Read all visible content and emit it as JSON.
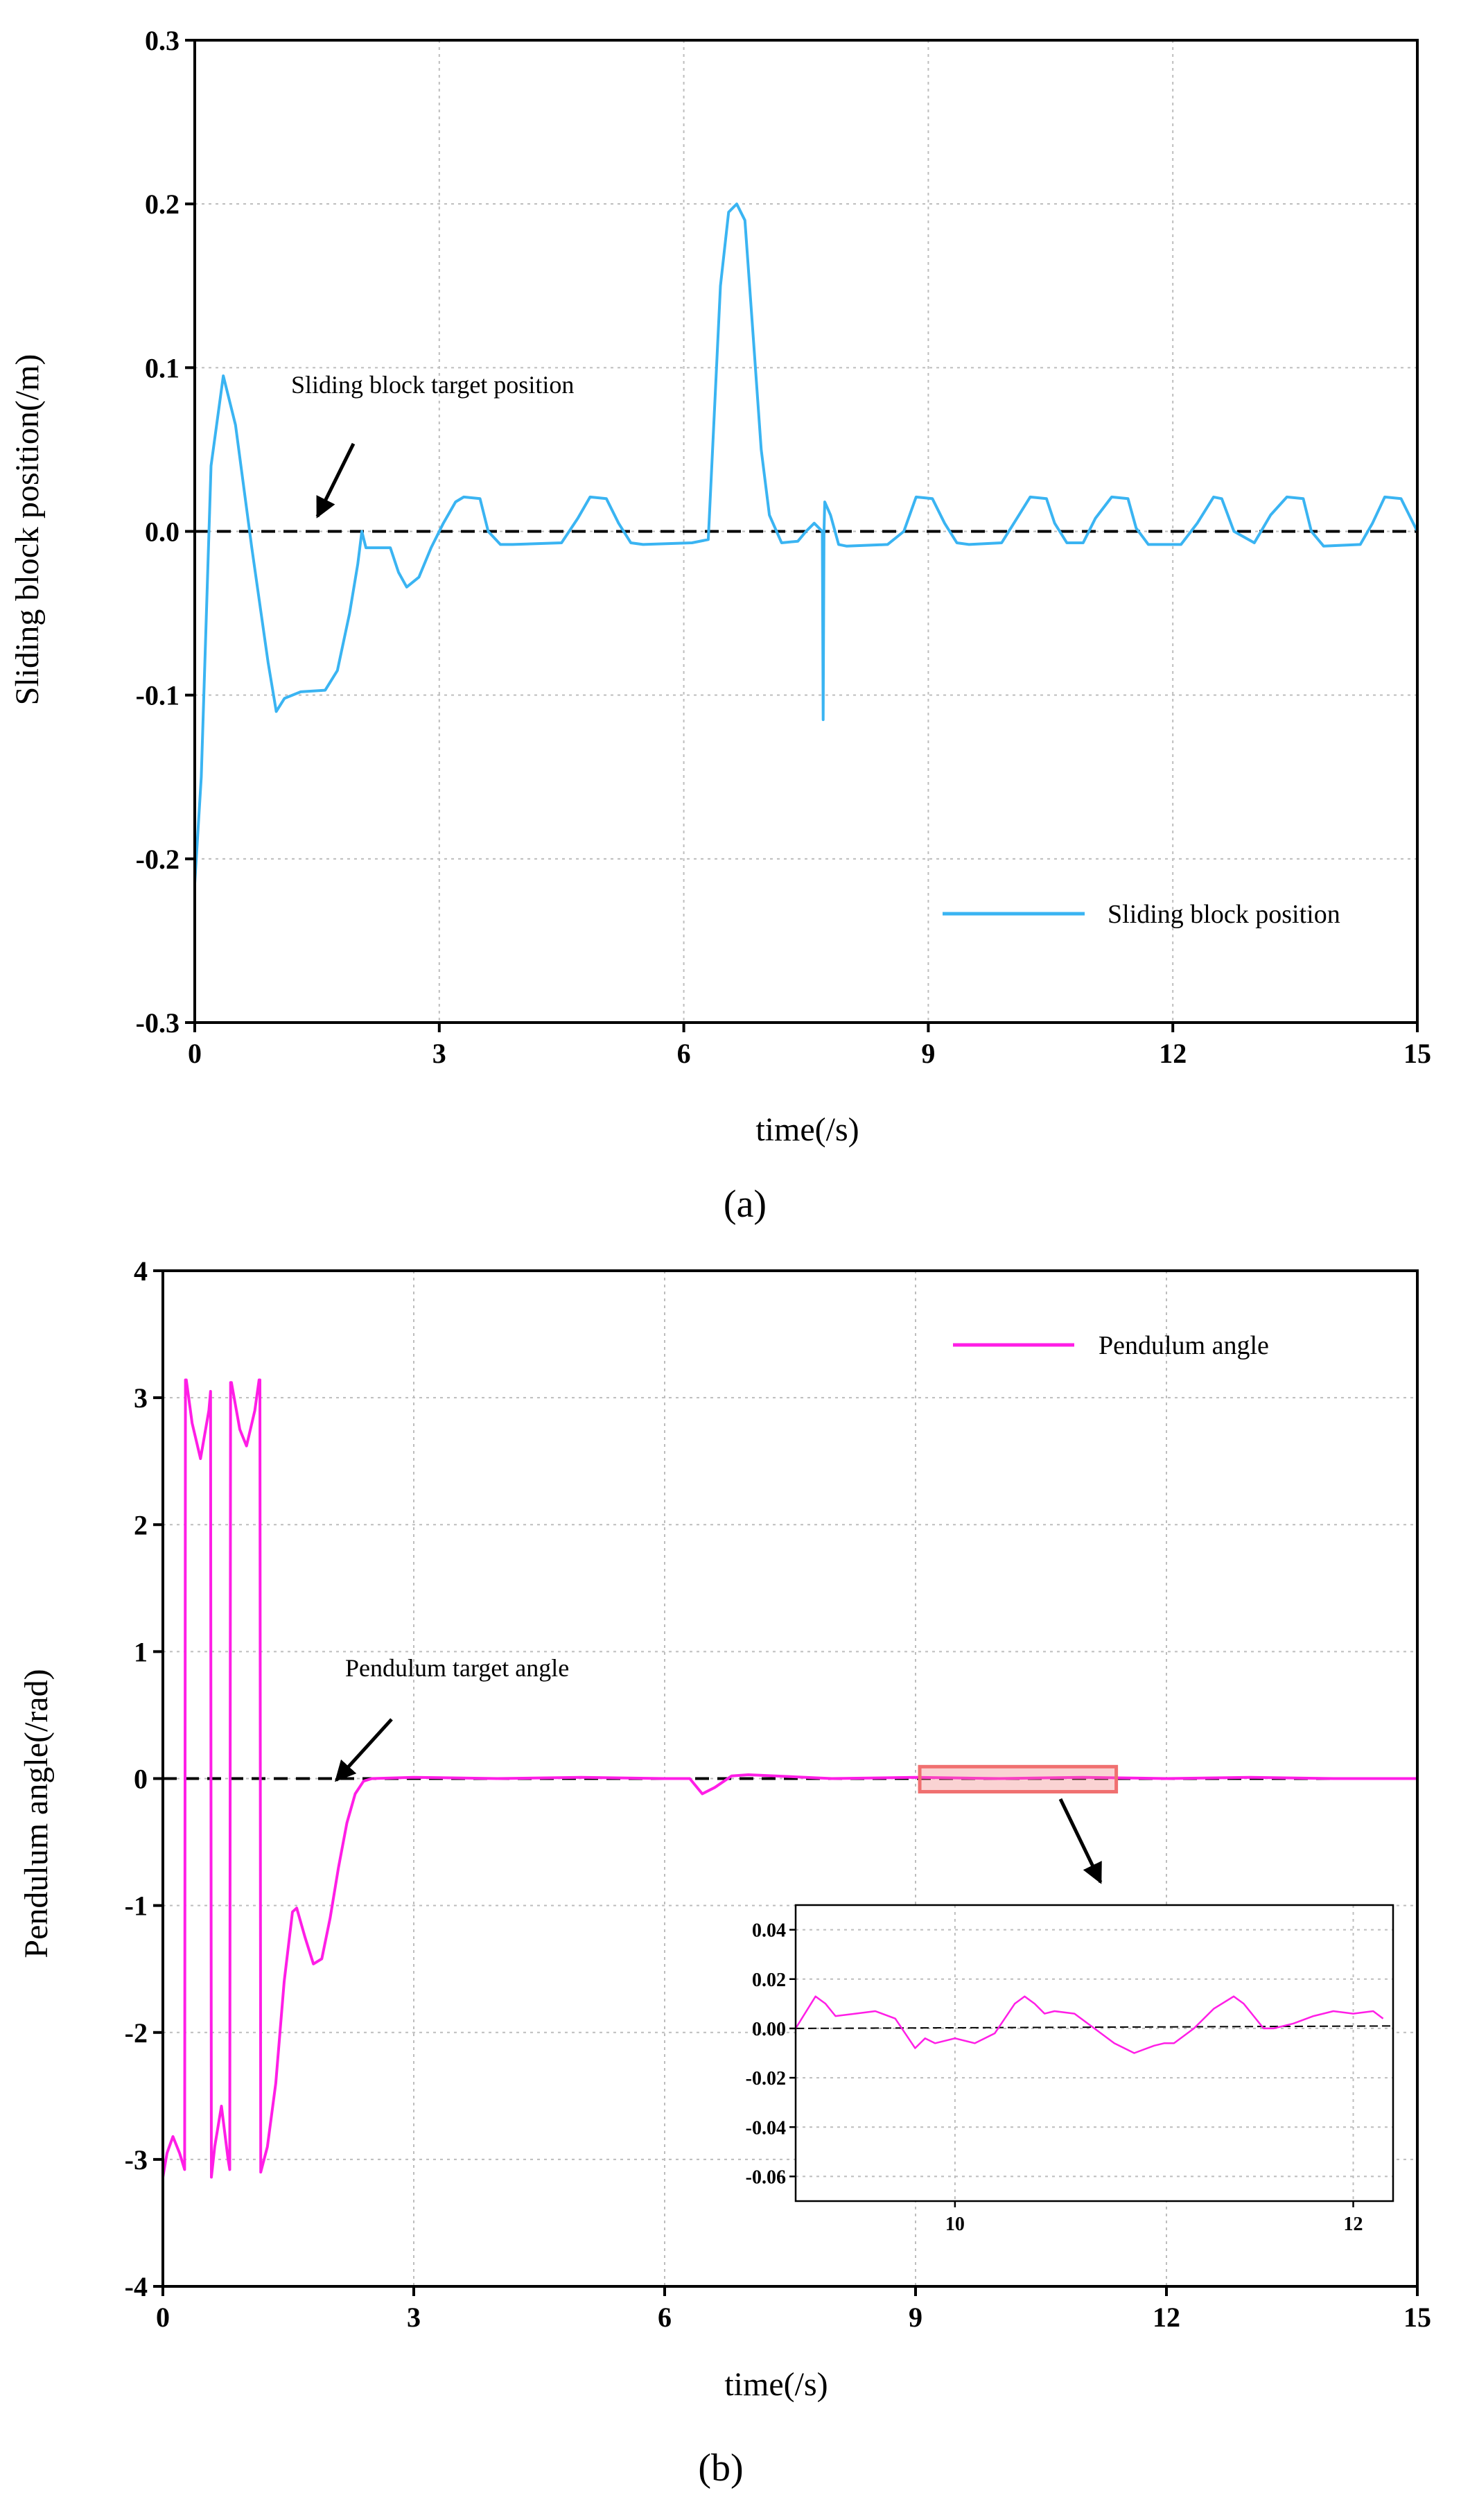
{
  "chart_data": [
    {
      "id": "a",
      "type": "line",
      "panel_label": "(a)",
      "xlabel": "time(/s)",
      "ylabel": "Sliding block position(/m)",
      "xlim": [
        0,
        15
      ],
      "ylim": [
        -0.3,
        0.3
      ],
      "xticks": [
        0,
        3,
        6,
        9,
        12,
        15
      ],
      "yticks": [
        -0.3,
        -0.2,
        -0.1,
        0.0,
        0.1,
        0.2,
        0.3
      ],
      "ytick_labels": [
        "-0.3",
        "-0.2",
        "-0.1",
        "0.0",
        "0.1",
        "0.2",
        "0.3"
      ],
      "grid": true,
      "legend_position": "bottom-right",
      "series": [
        {
          "name": "Sliding block position",
          "color": "#3ab4f2",
          "x": [
            0,
            0.08,
            0.2,
            0.35,
            0.5,
            0.7,
            0.9,
            1.0,
            1.1,
            1.3,
            1.6,
            1.75,
            1.9,
            2.0,
            2.05,
            2.1,
            2.4,
            2.5,
            2.6,
            2.75,
            2.9,
            3.05,
            3.2,
            3.3,
            3.5,
            3.6,
            3.75,
            3.9,
            4.5,
            4.7,
            4.85,
            5.05,
            5.2,
            5.35,
            5.5,
            6.1,
            6.3,
            6.45,
            6.55,
            6.65,
            6.75,
            6.85,
            6.95,
            7.05,
            7.2,
            7.4,
            7.5,
            7.6,
            7.7,
            7.71,
            7.72,
            7.73,
            7.8,
            7.9,
            8.0,
            8.5,
            8.7,
            8.85,
            9.05,
            9.2,
            9.35,
            9.5,
            9.9,
            10.05,
            10.25,
            10.45,
            10.55,
            10.7,
            10.9,
            11.05,
            11.25,
            11.45,
            11.55,
            11.7,
            12.0,
            12.1,
            12.3,
            12.5,
            12.6,
            12.75,
            13.0,
            13.2,
            13.4,
            13.6,
            13.7,
            13.85,
            14.3,
            14.45,
            14.6,
            14.8,
            14.9,
            15.0
          ],
          "y": [
            -0.215,
            -0.15,
            0.04,
            0.095,
            0.065,
            -0.01,
            -0.08,
            -0.11,
            -0.102,
            -0.098,
            -0.097,
            -0.085,
            -0.05,
            -0.02,
            0.0,
            -0.01,
            -0.01,
            -0.025,
            -0.034,
            -0.028,
            -0.01,
            0.005,
            0.018,
            0.021,
            0.02,
            0.0,
            -0.008,
            -0.008,
            -0.007,
            0.008,
            0.021,
            0.02,
            0.005,
            -0.007,
            -0.008,
            -0.007,
            -0.005,
            0.15,
            0.195,
            0.2,
            0.19,
            0.12,
            0.05,
            0.01,
            -0.007,
            -0.006,
            0.0,
            0.005,
            0.0,
            -0.115,
            0.0,
            0.018,
            0.01,
            -0.008,
            -0.009,
            -0.008,
            0.0,
            0.021,
            0.02,
            0.005,
            -0.007,
            -0.008,
            -0.007,
            0.005,
            0.021,
            0.02,
            0.005,
            -0.007,
            -0.007,
            0.008,
            0.021,
            0.02,
            0.002,
            -0.008,
            -0.008,
            -0.008,
            0.005,
            0.021,
            0.02,
            0.0,
            -0.007,
            0.01,
            0.021,
            0.02,
            0.0,
            -0.009,
            -0.008,
            0.005,
            0.021,
            0.02,
            0.01,
            0.0
          ]
        },
        {
          "name": "Sliding block target position",
          "color": "#000000",
          "dashed": true,
          "x": [
            0,
            15
          ],
          "y": [
            0,
            0
          ]
        }
      ],
      "annotations": [
        {
          "text": "Sliding block target position",
          "at": [
            1.55,
            0.0
          ]
        }
      ]
    },
    {
      "id": "b",
      "type": "line",
      "panel_label": "(b)",
      "xlabel": "time(/s)",
      "ylabel": "Pendulum angle(/rad)",
      "xlim": [
        0,
        15
      ],
      "ylim": [
        -4,
        4
      ],
      "xticks": [
        0,
        3,
        6,
        9,
        12,
        15
      ],
      "yticks": [
        -4,
        -3,
        -2,
        -1,
        0,
        1,
        2,
        3,
        4
      ],
      "ytick_labels": [
        "-4",
        "-3",
        "-2",
        "-1",
        "0",
        "1",
        "2",
        "3",
        "4"
      ],
      "grid": true,
      "legend_position": "top-right",
      "series": [
        {
          "name": "Pendulum angle",
          "color": "#ff1ee6",
          "x": [
            0,
            0.05,
            0.12,
            0.2,
            0.26,
            0.27,
            0.28,
            0.35,
            0.45,
            0.55,
            0.57,
            0.58,
            0.62,
            0.7,
            0.78,
            0.8,
            0.81,
            0.82,
            0.92,
            1.0,
            1.1,
            1.15,
            1.16,
            1.17,
            1.25,
            1.35,
            1.45,
            1.55,
            1.6,
            1.7,
            1.8,
            1.9,
            2.0,
            2.1,
            2.2,
            2.3,
            2.4,
            2.5,
            3.0,
            4.0,
            5.0,
            6.0,
            6.3,
            6.45,
            6.6,
            6.8,
            7.0,
            8.0,
            9.0,
            10.0,
            11.0,
            12.0,
            13.0,
            14.0,
            15.0
          ],
          "y": [
            -3.14,
            -2.95,
            -2.82,
            -2.95,
            -3.08,
            3.14,
            3.14,
            2.8,
            2.52,
            2.9,
            3.05,
            -3.14,
            -2.9,
            -2.58,
            -3.0,
            -3.08,
            3.12,
            3.12,
            2.75,
            2.62,
            2.9,
            3.14,
            3.14,
            -3.1,
            -2.9,
            -2.4,
            -1.6,
            -1.05,
            -1.02,
            -1.25,
            -1.46,
            -1.42,
            -1.1,
            -0.7,
            -0.35,
            -0.12,
            -0.02,
            0.0,
            0.01,
            0.0,
            0.01,
            0.0,
            0.0,
            -0.12,
            -0.07,
            0.02,
            0.03,
            0.0,
            0.01,
            0.0,
            0.01,
            0.0,
            0.01,
            0.0,
            0.0
          ]
        },
        {
          "name": "Pendulum target angle",
          "color": "#000000",
          "dashed": true,
          "x": [
            0,
            15
          ],
          "y": [
            0,
            0
          ]
        }
      ],
      "annotations": [
        {
          "text": "Pendulum target angle",
          "at": [
            2.1,
            0.0
          ]
        }
      ],
      "zoom_box": {
        "xlim": [
          9.05,
          11.4
        ],
        "ylim": [
          -0.06,
          0.05
        ]
      }
    },
    {
      "id": "b-inset",
      "type": "line",
      "xlim": [
        9.2,
        12.2
      ],
      "ylim": [
        -0.07,
        0.05
      ],
      "xticks": [
        10,
        12
      ],
      "yticks": [
        0.04,
        0.02,
        0.0,
        -0.02,
        -0.04,
        -0.06
      ],
      "ytick_labels": [
        "0.04",
        "0.02",
        "0.00",
        "-0.02",
        "-0.04",
        "-0.06"
      ],
      "grid": true,
      "series": [
        {
          "name": "Pendulum angle",
          "color": "#ff1ee6",
          "x": [
            9.2,
            9.3,
            9.35,
            9.4,
            9.5,
            9.6,
            9.7,
            9.8,
            9.85,
            9.9,
            10.0,
            10.1,
            10.2,
            10.3,
            10.35,
            10.4,
            10.45,
            10.5,
            10.6,
            10.7,
            10.8,
            10.9,
            11.0,
            11.05,
            11.1,
            11.2,
            11.3,
            11.4,
            11.45,
            11.5,
            11.55,
            11.6,
            11.7,
            11.8,
            11.9,
            12.0,
            12.1,
            12.15
          ],
          "y": [
            0.0,
            0.013,
            0.01,
            0.005,
            0.006,
            0.007,
            0.004,
            -0.008,
            -0.004,
            -0.006,
            -0.004,
            -0.006,
            -0.002,
            0.01,
            0.013,
            0.01,
            0.006,
            0.007,
            0.006,
            0.0,
            -0.006,
            -0.01,
            -0.007,
            -0.006,
            -0.006,
            0.0,
            0.008,
            0.013,
            0.01,
            0.005,
            0.0,
            0.0,
            0.002,
            0.005,
            0.007,
            0.006,
            0.007,
            0.004
          ]
        },
        {
          "name": "target",
          "color": "#000000",
          "dashed": true,
          "x": [
            9.2,
            12.2
          ],
          "y": [
            0.0,
            0.001
          ]
        }
      ]
    }
  ]
}
